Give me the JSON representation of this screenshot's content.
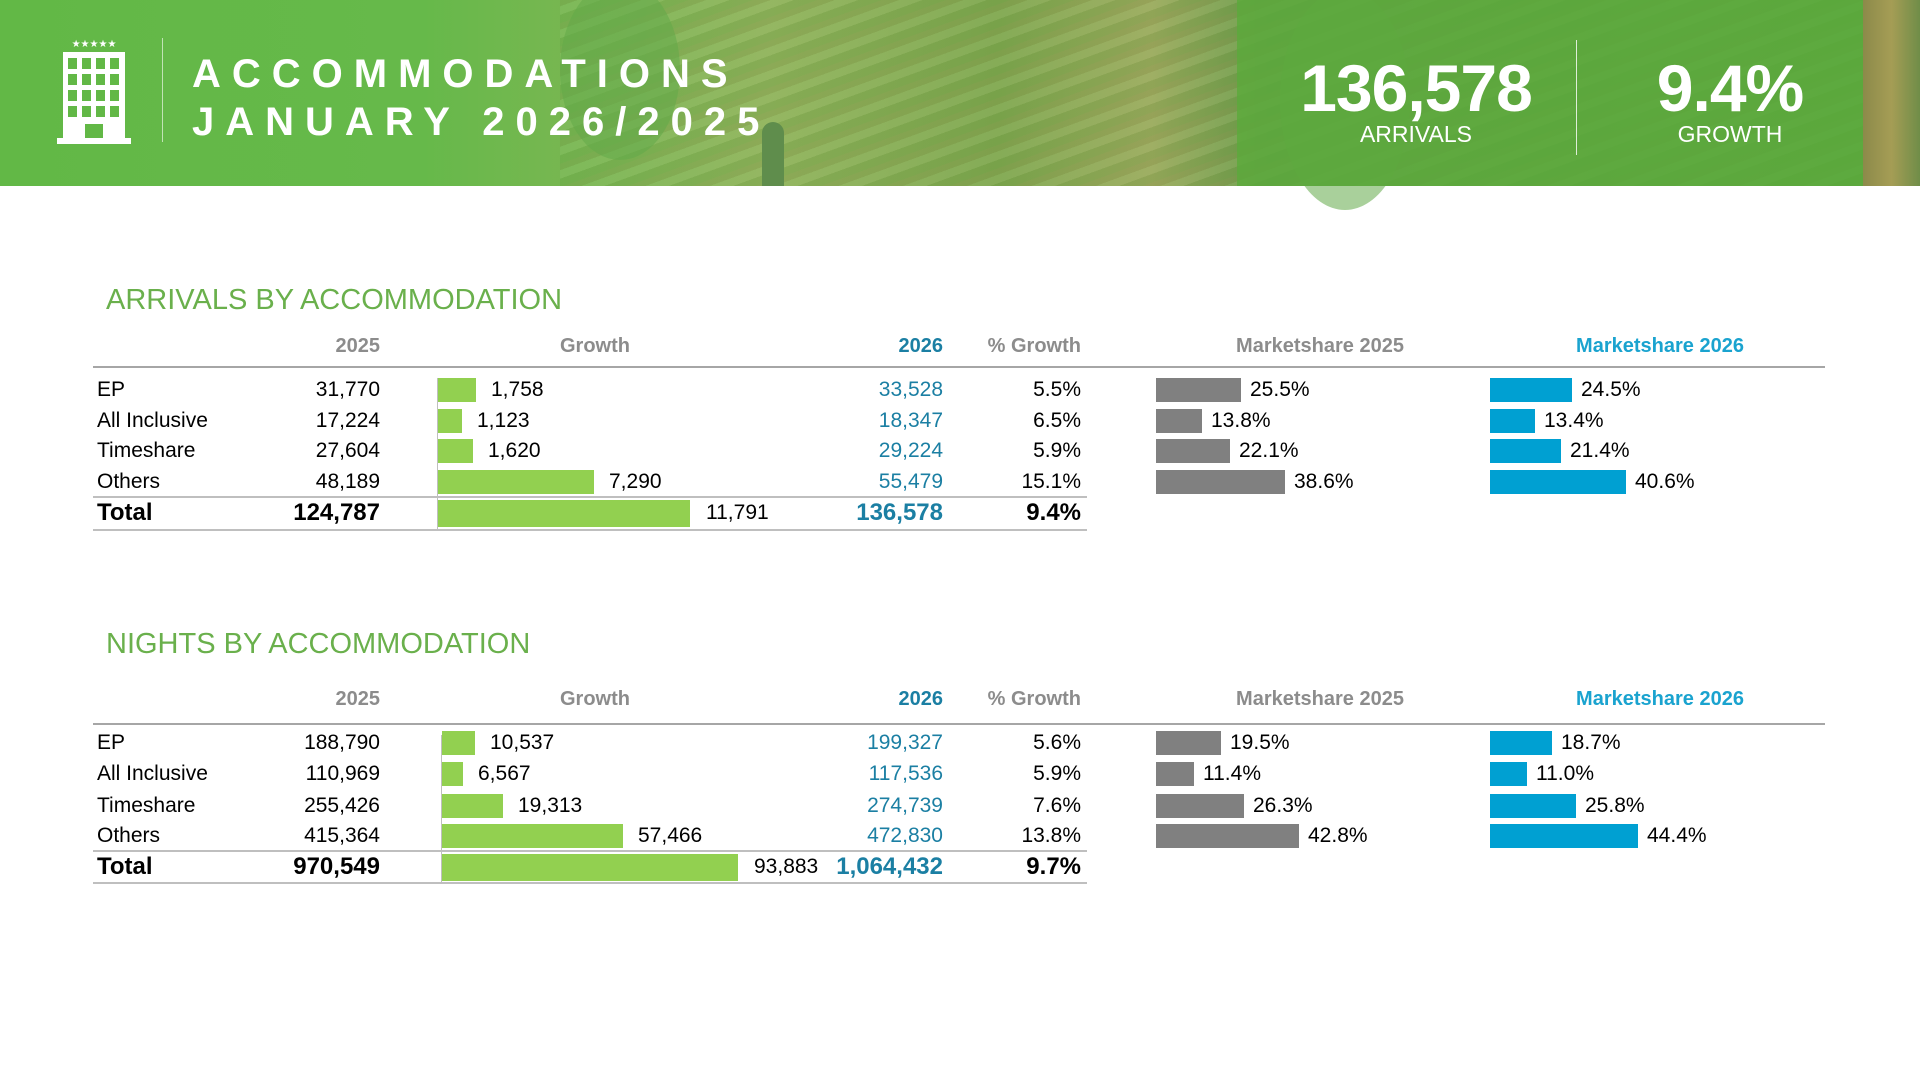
{
  "header": {
    "title_line1": "ACCOMMODATIONS",
    "title_line2": "JANUARY 2026/2025",
    "kpis": [
      {
        "value": "136,578",
        "label": "ARRIVALS"
      },
      {
        "value": "9.4%",
        "label": "GROWTH"
      }
    ],
    "icon": "hotel-building-icon"
  },
  "colors": {
    "brand_green": "#62b846",
    "growth_bar": "#92d050",
    "share_2025_bar": "#808080",
    "share_2026_bar": "#00a0d2",
    "value_2026": "#1b7fa3"
  },
  "columns": {
    "y2025": "2025",
    "growth": "Growth",
    "y2026": "2026",
    "pct_growth": "% Growth",
    "ms2025": "Marketshare 2025",
    "ms2026": "Marketshare 2026"
  },
  "tables": [
    {
      "title": "ARRIVALS BY ACCOMMODATION",
      "rows": [
        {
          "label": "EP",
          "y2025": "31,770",
          "growth": "1,758",
          "growth_value": 1758,
          "y2026": "33,528",
          "pct": "5.5%",
          "ms2025": "25.5%",
          "ms2025_value": 25.5,
          "ms2026": "24.5%",
          "ms2026_value": 24.5
        },
        {
          "label": "All Inclusive",
          "y2025": "17,224",
          "growth": "1,123",
          "growth_value": 1123,
          "y2026": "18,347",
          "pct": "6.5%",
          "ms2025": "13.8%",
          "ms2025_value": 13.8,
          "ms2026": "13.4%",
          "ms2026_value": 13.4
        },
        {
          "label": "Timeshare",
          "y2025": "27,604",
          "growth": "1,620",
          "growth_value": 1620,
          "y2026": "29,224",
          "pct": "5.9%",
          "ms2025": "22.1%",
          "ms2025_value": 22.1,
          "ms2026": "21.4%",
          "ms2026_value": 21.4
        },
        {
          "label": "Others",
          "y2025": "48,189",
          "growth": "7,290",
          "growth_value": 7290,
          "y2026": "55,479",
          "pct": "15.1%",
          "ms2025": "38.6%",
          "ms2025_value": 38.6,
          "ms2026": "40.6%",
          "ms2026_value": 40.6
        }
      ],
      "total": {
        "label": "Total",
        "y2025": "124,787",
        "growth": "11,791",
        "growth_value": 11791,
        "y2026": "136,578",
        "pct": "9.4%"
      }
    },
    {
      "title": "NIGHTS BY ACCOMMODATION",
      "rows": [
        {
          "label": "EP",
          "y2025": "188,790",
          "growth": "10,537",
          "growth_value": 10537,
          "y2026": "199,327",
          "pct": "5.6%",
          "ms2025": "19.5%",
          "ms2025_value": 19.5,
          "ms2026": "18.7%",
          "ms2026_value": 18.7
        },
        {
          "label": "All Inclusive",
          "y2025": "110,969",
          "growth": "6,567",
          "growth_value": 6567,
          "y2026": "117,536",
          "pct": "5.9%",
          "ms2025": "11.4%",
          "ms2025_value": 11.4,
          "ms2026": "11.0%",
          "ms2026_value": 11.0
        },
        {
          "label": "Timeshare",
          "y2025": "255,426",
          "growth": "19,313",
          "growth_value": 19313,
          "y2026": "274,739",
          "pct": "7.6%",
          "ms2025": "26.3%",
          "ms2025_value": 26.3,
          "ms2026": "25.8%",
          "ms2026_value": 25.8
        },
        {
          "label": "Others",
          "y2025": "415,364",
          "growth": "57,466",
          "growth_value": 57466,
          "y2026": "472,830",
          "pct": "13.8%",
          "ms2025": "42.8%",
          "ms2025_value": 42.8,
          "ms2026": "44.4%",
          "ms2026_value": 44.4
        }
      ],
      "total": {
        "label": "Total",
        "y2025": "970,549",
        "growth": "93,883",
        "growth_value": 93883,
        "y2026": "1,064,432",
        "pct": "9.7%"
      }
    }
  ]
}
